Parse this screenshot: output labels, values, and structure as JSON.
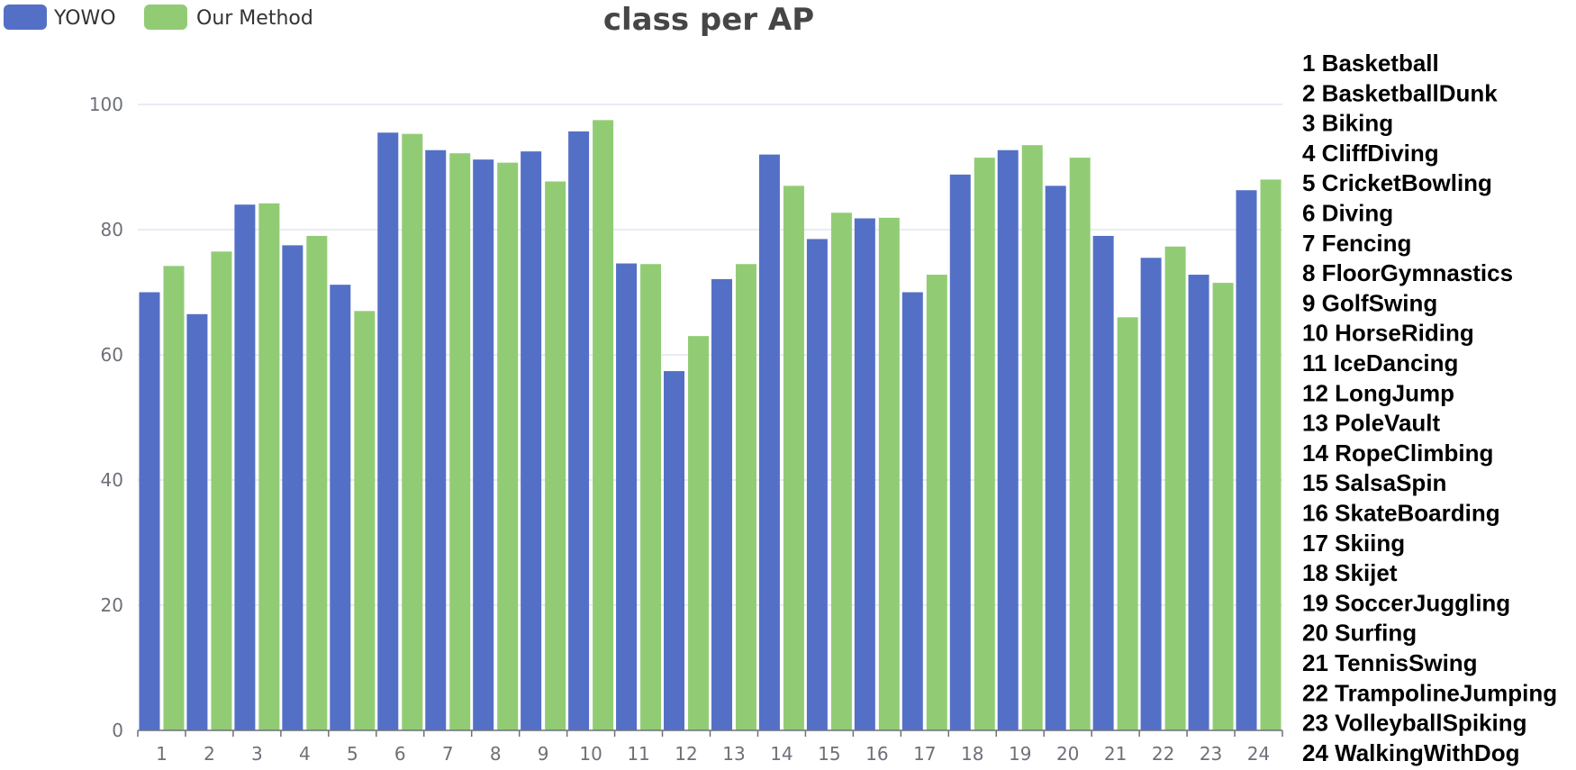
{
  "chart_data": {
    "type": "bar",
    "title": "class per AP",
    "xlabel": "",
    "ylabel": "",
    "ylim": [
      0,
      100
    ],
    "yticks": [
      0,
      20,
      40,
      60,
      80,
      100
    ],
    "grid": true,
    "legend_position": "top-left",
    "categories": [
      "1",
      "2",
      "3",
      "4",
      "5",
      "6",
      "7",
      "8",
      "9",
      "10",
      "11",
      "12",
      "13",
      "14",
      "15",
      "16",
      "17",
      "18",
      "19",
      "20",
      "21",
      "22",
      "23",
      "24"
    ],
    "series": [
      {
        "name": "YOWO",
        "color": "#5470c6",
        "values": [
          70.0,
          66.5,
          84.0,
          77.5,
          71.2,
          95.5,
          92.7,
          91.2,
          92.5,
          95.7,
          74.6,
          57.4,
          72.1,
          92.0,
          78.5,
          81.8,
          70.0,
          88.8,
          92.7,
          87.0,
          79.0,
          75.5,
          72.8,
          86.3
        ]
      },
      {
        "name": "Our Method",
        "color": "#91cc75",
        "values": [
          74.2,
          76.5,
          84.2,
          79.0,
          67.0,
          95.3,
          92.2,
          90.7,
          87.7,
          97.5,
          74.5,
          63.0,
          74.5,
          87.0,
          82.7,
          81.9,
          72.8,
          91.5,
          93.5,
          91.5,
          66.0,
          77.3,
          71.5,
          88.0
        ]
      }
    ],
    "class_list": [
      "1 Basketball",
      "2 BasketballDunk",
      "3 Biking",
      "4 CliffDiving",
      "5 CricketBowling",
      "6 Diving",
      "7 Fencing",
      "8 FloorGymnastics",
      "9 GolfSwing",
      "10 HorseRiding",
      "11 IceDancing",
      "12 LongJump",
      "13 PoleVault",
      "14 RopeClimbing",
      "15 SalsaSpin",
      "16 SkateBoarding",
      "17 Skiing",
      "18 Skijet",
      "19 SoccerJuggling",
      "20 Surfing",
      "21 TennisSwing",
      "22 TrampolineJumping",
      "23 VolleyballSpiking",
      "24 WalkingWithDog"
    ]
  }
}
